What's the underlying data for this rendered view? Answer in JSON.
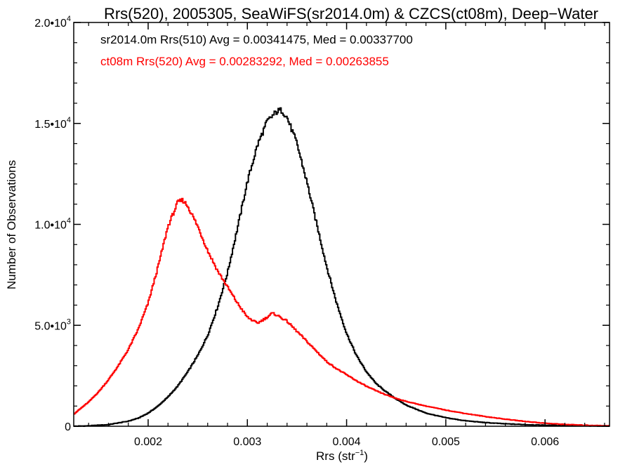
{
  "chart_data": {
    "type": "histogram",
    "title": "Rrs(520), 2005305, SeaWiFS(sr2014.0m) & CZCS(ct08m), Deep−Water",
    "xlabel": {
      "base": "Rrs (str",
      "sup": "−1",
      "tail": ")"
    },
    "ylabel": "Number of Observations",
    "xlim": [
      0.00125,
      0.00665
    ],
    "ylim": [
      0,
      20000
    ],
    "x_ticks": [
      {
        "value": 0.002,
        "label": "0.002"
      },
      {
        "value": 0.003,
        "label": "0.003"
      },
      {
        "value": 0.004,
        "label": "0.004"
      },
      {
        "value": 0.005,
        "label": "0.005"
      },
      {
        "value": 0.006,
        "label": "0.006"
      }
    ],
    "y_ticks": [
      {
        "value": 0,
        "base": "0",
        "sup": ""
      },
      {
        "value": 5000,
        "base": "5.0•10",
        "sup": "3"
      },
      {
        "value": 10000,
        "base": "1.0•10",
        "sup": "4"
      },
      {
        "value": 15000,
        "base": "1.5•10",
        "sup": "4"
      },
      {
        "value": 20000,
        "base": "2.0•10",
        "sup": "4"
      }
    ],
    "series": [
      {
        "name": "sr2014.0m",
        "label": "sr2014.0m Rrs(510) Avg = 0.00341475, Med = 0.00337700",
        "color": "#000000",
        "x": [
          0.00125,
          0.0014,
          0.0016,
          0.0018,
          0.0019,
          0.002,
          0.0021,
          0.0022,
          0.0023,
          0.0024,
          0.0025,
          0.0026,
          0.0027,
          0.0028,
          0.0029,
          0.003,
          0.0031,
          0.0032,
          0.0033,
          0.00335,
          0.0034,
          0.0035,
          0.0036,
          0.0037,
          0.0038,
          0.0039,
          0.004,
          0.0041,
          0.0042,
          0.0043,
          0.0044,
          0.0045,
          0.0046,
          0.0047,
          0.0048,
          0.005,
          0.0052,
          0.0054,
          0.0056,
          0.0058,
          0.006,
          0.0062,
          0.0064,
          0.00665
        ],
        "y": [
          0,
          20,
          80,
          250,
          400,
          650,
          1000,
          1450,
          2000,
          2700,
          3500,
          4500,
          5900,
          7600,
          9800,
          12100,
          13900,
          15100,
          15600,
          15650,
          15300,
          14000,
          12100,
          10000,
          7900,
          6100,
          4600,
          3500,
          2700,
          2100,
          1700,
          1350,
          1050,
          850,
          650,
          420,
          270,
          180,
          120,
          80,
          50,
          30,
          20,
          10
        ]
      },
      {
        "name": "ct08m",
        "label": "ct08m Rrs(520) Avg = 0.00283292, Med = 0.00263855",
        "color": "#ff0000",
        "x": [
          0.00125,
          0.0014,
          0.0015,
          0.0016,
          0.0017,
          0.0018,
          0.0019,
          0.002,
          0.0021,
          0.0022,
          0.0023,
          0.00235,
          0.0024,
          0.0025,
          0.0026,
          0.0027,
          0.0028,
          0.0029,
          0.003,
          0.0031,
          0.0032,
          0.00325,
          0.0033,
          0.0034,
          0.0035,
          0.0036,
          0.0037,
          0.0038,
          0.0039,
          0.004,
          0.0041,
          0.0042,
          0.0043,
          0.0044,
          0.0045,
          0.0046,
          0.0048,
          0.005,
          0.0052,
          0.0054,
          0.0056,
          0.0058,
          0.006,
          0.0062,
          0.0064,
          0.00665
        ],
        "y": [
          600,
          1200,
          1700,
          2300,
          3000,
          3800,
          4800,
          6100,
          7900,
          9900,
          11100,
          11200,
          10900,
          9900,
          8700,
          7700,
          6900,
          6100,
          5400,
          5100,
          5400,
          5600,
          5500,
          5200,
          4700,
          4200,
          3700,
          3200,
          2850,
          2550,
          2250,
          1980,
          1750,
          1550,
          1380,
          1230,
          1000,
          800,
          630,
          480,
          350,
          240,
          150,
          90,
          50,
          20
        ]
      }
    ]
  }
}
